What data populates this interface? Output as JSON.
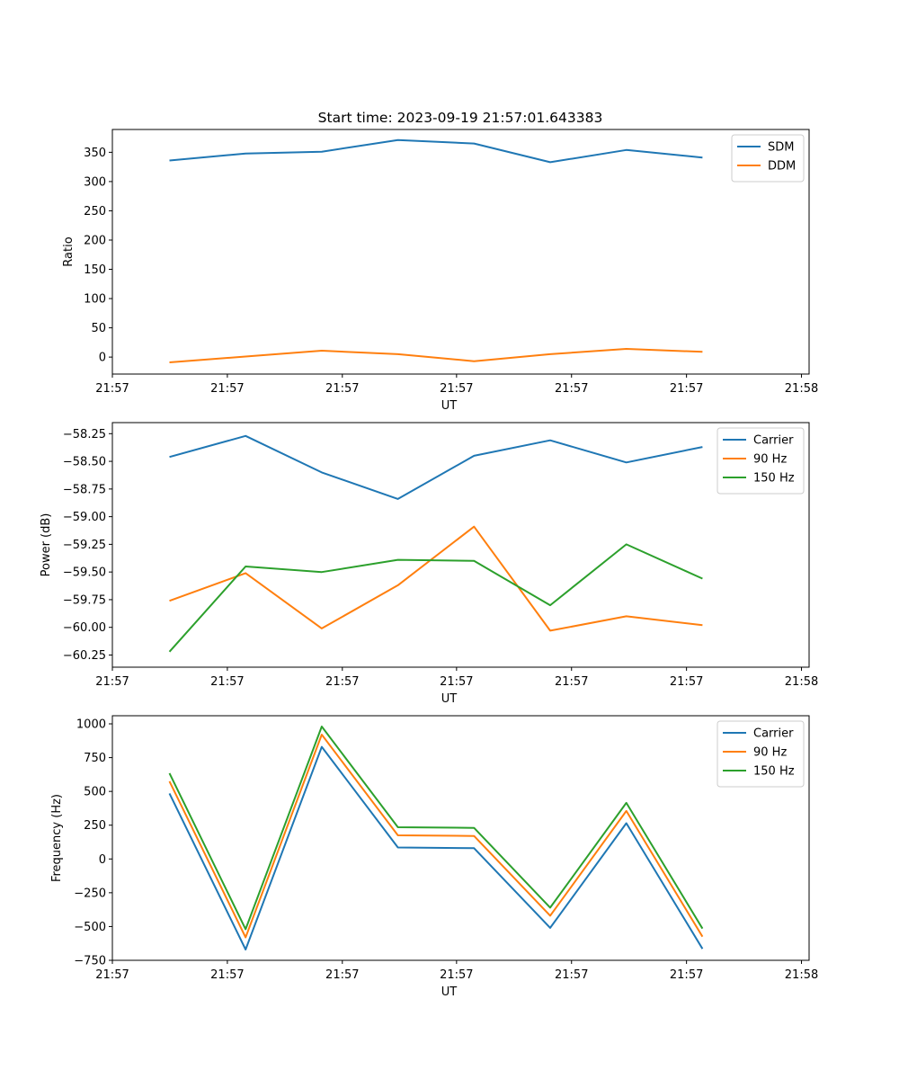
{
  "figure": {
    "title": "Start time: 2023-09-19 21:57:01.643383"
  },
  "colors": {
    "blue": "#1f77b4",
    "orange": "#ff7f0e",
    "green": "#2ca02c"
  },
  "chart_data": [
    {
      "type": "line",
      "title": "Start time: 2023-09-19 21:57:01.643383",
      "xlabel": "UT",
      "ylabel": "Ratio",
      "x": [
        0,
        1,
        2,
        3,
        4,
        5,
        6,
        7
      ],
      "xlim": [
        -0.75,
        8.4
      ],
      "x_ticks": [
        -0.75,
        0.76,
        2.27,
        3.77,
        5.28,
        6.79,
        8.3
      ],
      "x_tick_labels": [
        "21:57",
        "21:57",
        "21:57",
        "21:57",
        "21:57",
        "21:57",
        "21:58"
      ],
      "ylim": [
        -29,
        389
      ],
      "y_ticks": [
        0,
        50,
        100,
        150,
        200,
        250,
        300,
        350
      ],
      "y_tick_labels": [
        "0",
        "50",
        "100",
        "150",
        "200",
        "250",
        "300",
        "350"
      ],
      "legend_position": "top-right",
      "series": [
        {
          "name": "SDM",
          "color": "#1f77b4",
          "values": [
            336,
            348,
            351,
            371,
            365,
            333,
            354,
            341
          ]
        },
        {
          "name": "DDM",
          "color": "#ff7f0e",
          "values": [
            -9,
            1,
            11,
            5,
            -7,
            5,
            14,
            9
          ]
        }
      ]
    },
    {
      "type": "line",
      "title": "",
      "xlabel": "UT",
      "ylabel": "Power (dB)",
      "x": [
        0,
        1,
        2,
        3,
        4,
        5,
        6,
        7
      ],
      "xlim": [
        -0.75,
        8.4
      ],
      "x_ticks": [
        -0.75,
        0.76,
        2.27,
        3.77,
        5.28,
        6.79,
        8.3
      ],
      "x_tick_labels": [
        "21:57",
        "21:57",
        "21:57",
        "21:57",
        "21:57",
        "21:57",
        "21:58"
      ],
      "ylim": [
        -60.36,
        -58.15
      ],
      "y_ticks": [
        -60.25,
        -60.0,
        -59.75,
        -59.5,
        -59.25,
        -59.0,
        -58.75,
        -58.5,
        -58.25
      ],
      "y_tick_labels": [
        "−60.25",
        "−60.00",
        "−59.75",
        "−59.50",
        "−59.25",
        "−59.00",
        "−58.75",
        "−58.50",
        "−58.25"
      ],
      "legend_position": "top-right",
      "series": [
        {
          "name": "Carrier",
          "color": "#1f77b4",
          "values": [
            -58.46,
            -58.27,
            -58.6,
            -58.84,
            -58.45,
            -58.31,
            -58.51,
            -58.37
          ]
        },
        {
          "name": "90 Hz",
          "color": "#ff7f0e",
          "values": [
            -59.76,
            -59.51,
            -60.01,
            -59.62,
            -59.09,
            -60.03,
            -59.9,
            -59.98
          ]
        },
        {
          "name": "150 Hz",
          "color": "#2ca02c",
          "values": [
            -60.22,
            -59.45,
            -59.5,
            -59.39,
            -59.4,
            -59.8,
            -59.25,
            -59.56
          ]
        }
      ]
    },
    {
      "type": "line",
      "title": "",
      "xlabel": "UT",
      "ylabel": "Frequency (Hz)",
      "x": [
        0,
        1,
        2,
        3,
        4,
        5,
        6,
        7
      ],
      "xlim": [
        -0.75,
        8.4
      ],
      "x_ticks": [
        -0.75,
        0.76,
        2.27,
        3.77,
        5.28,
        6.79,
        8.3
      ],
      "x_tick_labels": [
        "21:57",
        "21:57",
        "21:57",
        "21:57",
        "21:57",
        "21:57",
        "21:58"
      ],
      "ylim": [
        -750,
        1060
      ],
      "y_ticks": [
        -750,
        -500,
        -250,
        0,
        250,
        500,
        750,
        1000
      ],
      "y_tick_labels": [
        "−750",
        "−500",
        "−250",
        "0",
        "250",
        "500",
        "750",
        "1000"
      ],
      "legend_position": "top-right",
      "series": [
        {
          "name": "Carrier",
          "color": "#1f77b4",
          "values": [
            485,
            -670,
            830,
            85,
            80,
            -510,
            265,
            -665
          ]
        },
        {
          "name": "90 Hz",
          "color": "#ff7f0e",
          "values": [
            575,
            -580,
            920,
            175,
            170,
            -420,
            355,
            -575
          ]
        },
        {
          "name": "150 Hz",
          "color": "#2ca02c",
          "values": [
            635,
            -520,
            980,
            235,
            230,
            -360,
            415,
            -515
          ]
        }
      ]
    }
  ]
}
